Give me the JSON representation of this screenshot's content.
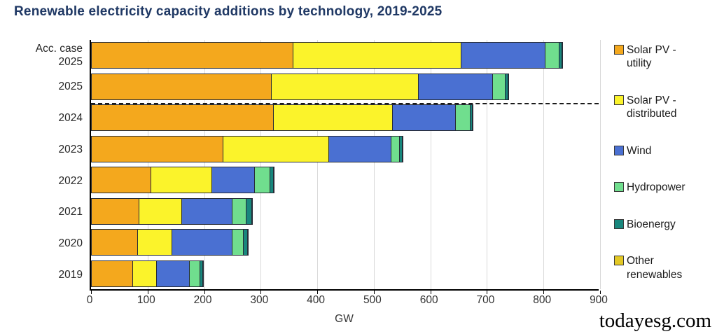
{
  "title": "Renewable electricity capacity additions by technology, 2019-2025",
  "title_color": "#1F3864",
  "watermark": "todayesg.com",
  "chart_data": {
    "type": "bar",
    "orientation": "horizontal",
    "stacked": true,
    "title": "Renewable electricity capacity additions by technology, 2019-2025",
    "xlabel": "GW",
    "ylabel": "",
    "xlim": [
      0,
      900
    ],
    "xticks": [
      0,
      100,
      200,
      300,
      400,
      500,
      600,
      700,
      800,
      900
    ],
    "grid": "vertical-light-gray",
    "legend_position": "right",
    "categories": [
      "Acc. case\n2025",
      "2025",
      "2024",
      "2023",
      "2022",
      "2021",
      "2020",
      "2019"
    ],
    "separator_after_index": 1,
    "separator_style": "black-dashed-line",
    "series": [
      {
        "name": "Solar PV -\nutility",
        "color": "#F4A81D",
        "values": [
          358,
          320,
          323,
          235,
          107,
          86,
          83,
          75
        ]
      },
      {
        "name": "Solar PV -\ndistributed",
        "color": "#FBF32B",
        "values": [
          299,
          262,
          213,
          188,
          110,
          77,
          63,
          43
        ]
      },
      {
        "name": "Wind",
        "color": "#4A70D2",
        "values": [
          150,
          132,
          113,
          112,
          77,
          91,
          108,
          61
        ]
      },
      {
        "name": "Hydropower",
        "color": "#70DE8E",
        "values": [
          27,
          25,
          28,
          16,
          29,
          27,
          21,
          20
        ]
      },
      {
        "name": "Bioenergy",
        "color": "#18877D",
        "values": [
          7,
          6,
          5,
          7,
          8,
          11,
          10,
          7
        ]
      },
      {
        "name": "Other\nrenewables",
        "color": "#E3C824",
        "values": [
          1,
          1,
          1,
          1,
          1,
          1,
          1,
          1
        ]
      }
    ],
    "totals": [
      842,
      746,
      683,
      559,
      332,
      293,
      286,
      207
    ]
  }
}
